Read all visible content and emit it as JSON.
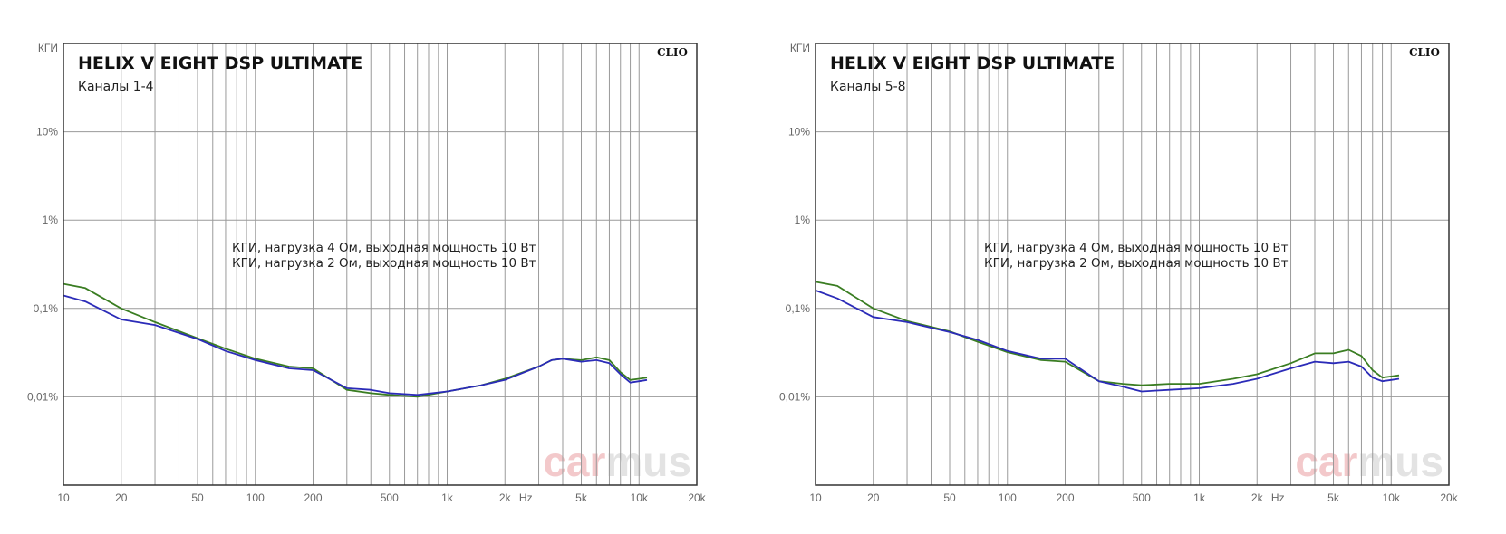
{
  "colors": {
    "green": "#3a7d22",
    "blue": "#2b2bb8",
    "grid": "#9a9a9a",
    "frame": "#333333",
    "watermark_car": "#f3c9cb",
    "watermark_mus": "#e3e3e3"
  },
  "charts": [
    {
      "title": "HELIX V EIGHT DSP ULTIMATE",
      "subtitle": "Каналы 1-4"
    },
    {
      "title": "HELIX V EIGHT DSP ULTIMATE",
      "subtitle": "Каналы 5-8"
    }
  ],
  "chart_data": [
    {
      "type": "line",
      "title": "HELIX V EIGHT DSP ULTIMATE",
      "subtitle": "Каналы 1-4",
      "ylabel": "КГИ",
      "xunit": "Hz",
      "x_scale": "log",
      "y_scale": "log",
      "xlim": [
        10,
        20000
      ],
      "ylim_percent": [
        0.001,
        100
      ],
      "x_ticks": [
        "10",
        "20",
        "50",
        "100",
        "200",
        "500",
        "1k",
        "2k",
        "5k",
        "10k",
        "20k"
      ],
      "y_ticks": [
        "10%",
        "1%",
        "0,1%",
        "0,01%"
      ],
      "grid": true,
      "legend_placement": "center",
      "badge": "CLIO",
      "watermark": [
        "car",
        "mus"
      ],
      "series": [
        {
          "name": "КГИ, нагрузка 4 Ом, выходная мощность 10 Вт",
          "color": "green",
          "x": [
            10,
            13,
            20,
            30,
            50,
            70,
            100,
            150,
            200,
            300,
            400,
            500,
            700,
            1000,
            1500,
            2000,
            3000,
            3500,
            4000,
            5000,
            6000,
            7000,
            8000,
            9000,
            10000,
            11000
          ],
          "y": [
            0.19,
            0.17,
            0.1,
            0.07,
            0.046,
            0.035,
            0.027,
            0.022,
            0.021,
            0.012,
            0.011,
            0.0105,
            0.01,
            0.0115,
            0.0135,
            0.016,
            0.022,
            0.026,
            0.027,
            0.026,
            0.028,
            0.026,
            0.019,
            0.0155,
            0.016,
            0.0165
          ]
        },
        {
          "name": "КГИ, нагрузка 2 Ом, выходная мощность 10 Вт",
          "color": "blue",
          "x": [
            10,
            13,
            20,
            30,
            50,
            70,
            100,
            150,
            200,
            300,
            400,
            500,
            700,
            1000,
            1500,
            2000,
            3000,
            3500,
            4000,
            5000,
            6000,
            7000,
            8000,
            9000,
            10000,
            11000
          ],
          "y": [
            0.14,
            0.12,
            0.075,
            0.065,
            0.045,
            0.033,
            0.026,
            0.021,
            0.02,
            0.0125,
            0.012,
            0.011,
            0.0105,
            0.0115,
            0.0135,
            0.0155,
            0.022,
            0.026,
            0.027,
            0.025,
            0.026,
            0.024,
            0.018,
            0.0145,
            0.015,
            0.0155
          ]
        }
      ]
    },
    {
      "type": "line",
      "title": "HELIX V EIGHT DSP ULTIMATE",
      "subtitle": "Каналы 5-8",
      "ylabel": "КГИ",
      "xunit": "Hz",
      "x_scale": "log",
      "y_scale": "log",
      "xlim": [
        10,
        20000
      ],
      "ylim_percent": [
        0.001,
        100
      ],
      "x_ticks": [
        "10",
        "20",
        "50",
        "100",
        "200",
        "500",
        "1k",
        "2k",
        "5k",
        "10k",
        "20k"
      ],
      "y_ticks": [
        "10%",
        "1%",
        "0,1%",
        "0,01%"
      ],
      "grid": true,
      "legend_placement": "center",
      "badge": "CLIO",
      "watermark": [
        "car",
        "mus"
      ],
      "series": [
        {
          "name": "КГИ, нагрузка 4 Ом, выходная мощность 10 Вт",
          "color": "green",
          "x": [
            10,
            13,
            20,
            30,
            50,
            70,
            100,
            150,
            200,
            300,
            400,
            500,
            700,
            1000,
            1500,
            2000,
            3000,
            4000,
            5000,
            6000,
            7000,
            8000,
            9000,
            10000,
            11000
          ],
          "y": [
            0.2,
            0.18,
            0.1,
            0.072,
            0.055,
            0.042,
            0.032,
            0.026,
            0.025,
            0.015,
            0.014,
            0.0135,
            0.014,
            0.014,
            0.016,
            0.018,
            0.024,
            0.031,
            0.031,
            0.034,
            0.029,
            0.02,
            0.0165,
            0.017,
            0.0175
          ]
        },
        {
          "name": "КГИ, нагрузка 2 Ом, выходная мощность 10 Вт",
          "color": "blue",
          "x": [
            10,
            13,
            20,
            30,
            50,
            70,
            100,
            150,
            200,
            300,
            400,
            500,
            700,
            1000,
            1500,
            2000,
            3000,
            4000,
            5000,
            6000,
            7000,
            8000,
            9000,
            10000,
            11000
          ],
          "y": [
            0.16,
            0.13,
            0.08,
            0.07,
            0.054,
            0.044,
            0.033,
            0.027,
            0.027,
            0.015,
            0.013,
            0.0115,
            0.012,
            0.0125,
            0.014,
            0.016,
            0.021,
            0.025,
            0.024,
            0.025,
            0.022,
            0.0165,
            0.015,
            0.0155,
            0.016
          ]
        }
      ]
    }
  ]
}
